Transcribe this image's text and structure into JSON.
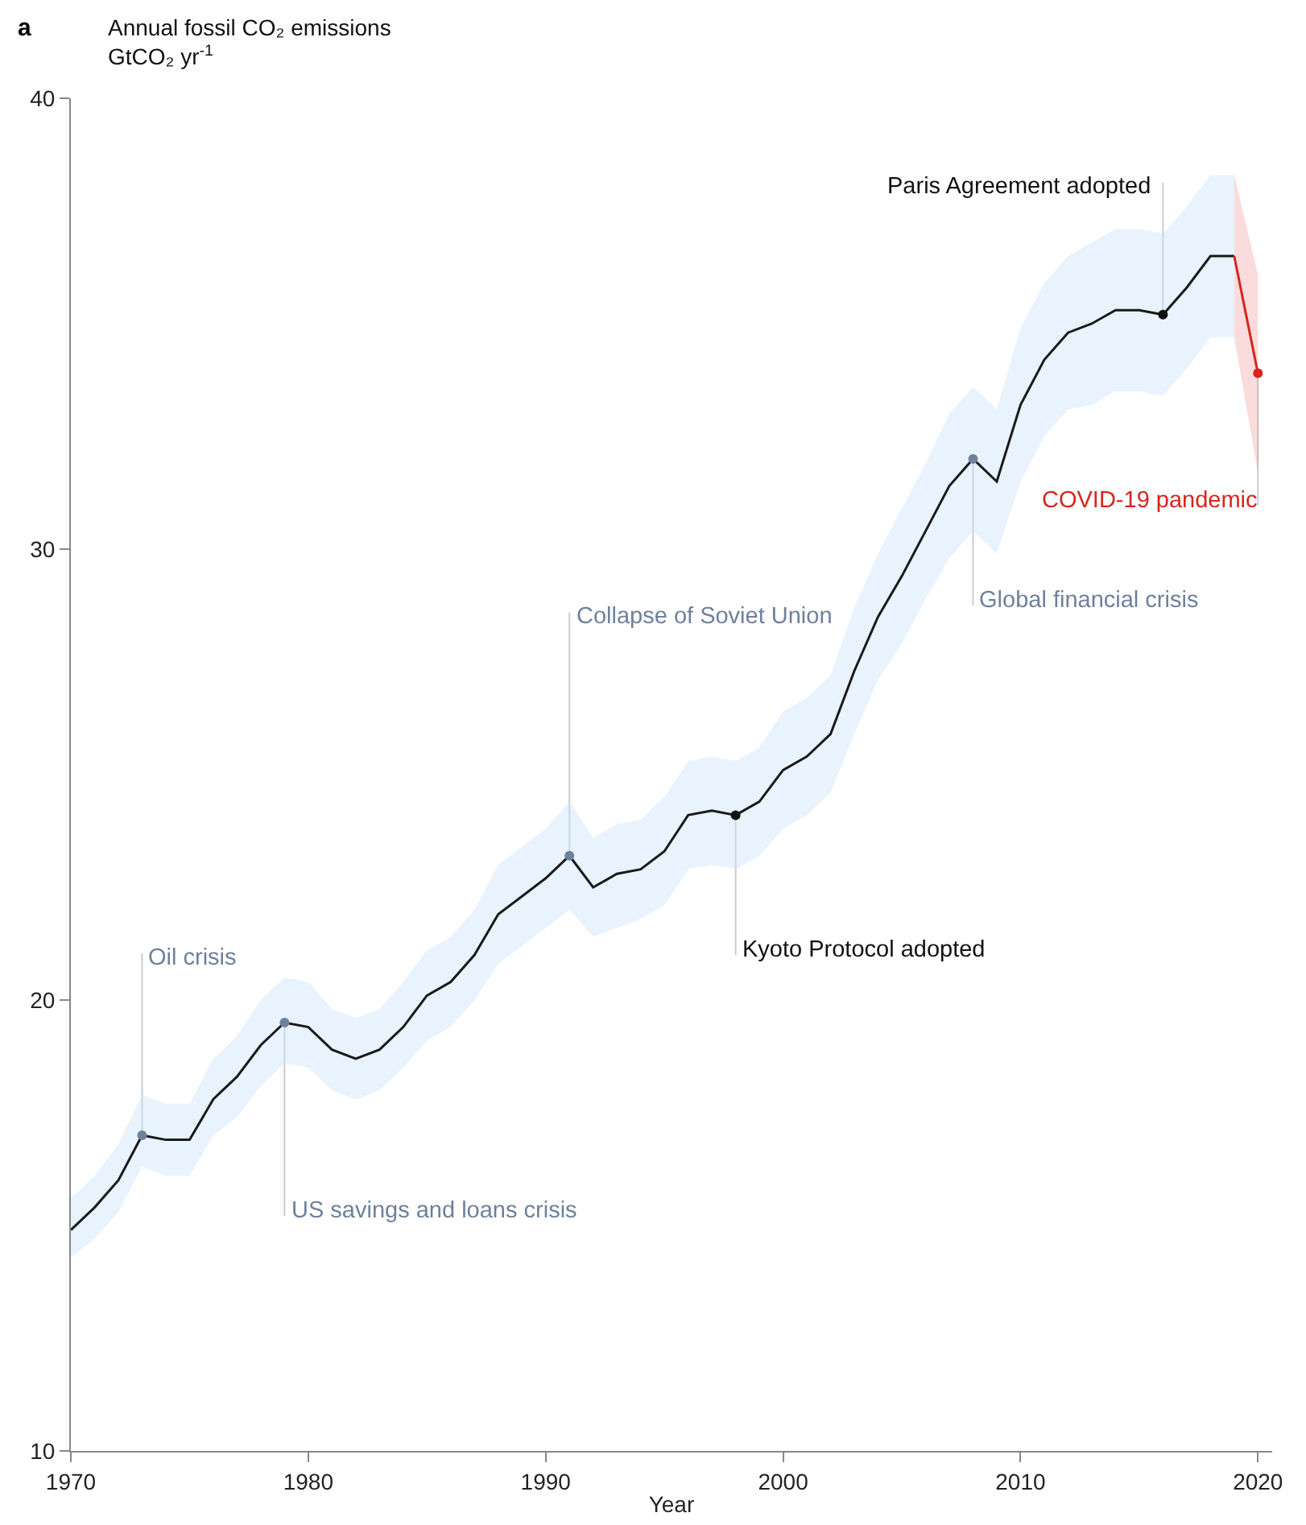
{
  "chart_data": {
    "type": "line",
    "title": "a",
    "ylabel": "Annual fossil CO₂ emissions\nGtCO₂ yr$^{-1}$",
    "xlabel": "Year",
    "xlim": [
      1970,
      2020.6
    ],
    "xticks": [
      1970,
      1980,
      1990,
      2000,
      2010,
      2020
    ],
    "ylim": [
      10,
      40
    ],
    "yticks": [
      10,
      20,
      30,
      40
    ],
    "grid": false,
    "marker": "none",
    "line_style": "solid",
    "series": [
      {
        "color": "#1a1a1a",
        "x": [
          1970,
          1971,
          1972,
          1973,
          1974,
          1975,
          1976,
          1977,
          1978,
          1979,
          1980,
          1981,
          1982,
          1983,
          1984,
          1985,
          1986,
          1987,
          1988,
          1989,
          1990,
          1991,
          1992,
          1993,
          1994,
          1995,
          1996,
          1997,
          1998,
          1999,
          2000,
          2001,
          2002,
          2003,
          2004,
          2005,
          2006,
          2007,
          2008,
          2009,
          2010,
          2011,
          2012,
          2013,
          2014,
          2015,
          2016,
          2017,
          2018,
          2019
        ],
        "values": [
          14.9,
          15.4,
          16.0,
          17.0,
          16.9,
          16.9,
          17.8,
          18.3,
          19.0,
          19.5,
          19.4,
          18.9,
          18.7,
          18.9,
          19.4,
          20.1,
          20.4,
          21.0,
          21.9,
          22.3,
          22.7,
          23.2,
          22.5,
          22.8,
          22.9,
          23.3,
          24.1,
          24.2,
          24.1,
          24.4,
          25.1,
          25.4,
          25.9,
          27.3,
          28.5,
          29.4,
          30.4,
          31.4,
          32.0,
          31.5,
          33.2,
          34.2,
          34.8,
          35.0,
          35.3,
          35.3,
          35.2,
          35.8,
          36.5,
          36.5
        ],
        "lower": [
          14.3,
          14.7,
          15.3,
          16.3,
          16.1,
          16.1,
          17.0,
          17.4,
          18.1,
          18.6,
          18.5,
          18.0,
          17.8,
          18.0,
          18.5,
          19.1,
          19.4,
          20.0,
          20.8,
          21.2,
          21.6,
          22.0,
          21.4,
          21.6,
          21.8,
          22.1,
          22.9,
          23.0,
          22.9,
          23.2,
          23.8,
          24.1,
          24.6,
          25.9,
          27.1,
          27.9,
          28.9,
          29.8,
          30.4,
          29.9,
          31.5,
          32.5,
          33.1,
          33.2,
          33.5,
          33.5,
          33.4,
          34.0,
          34.7,
          34.7
        ],
        "upper": [
          15.6,
          16.1,
          16.8,
          17.9,
          17.7,
          17.7,
          18.7,
          19.2,
          20.0,
          20.5,
          20.4,
          19.8,
          19.6,
          19.8,
          20.4,
          21.1,
          21.4,
          22.0,
          23.0,
          23.4,
          23.8,
          24.4,
          23.6,
          23.9,
          24.0,
          24.5,
          25.3,
          25.4,
          25.3,
          25.6,
          26.4,
          26.7,
          27.2,
          28.7,
          29.9,
          30.9,
          31.9,
          33.0,
          33.6,
          33.1,
          34.9,
          35.9,
          36.5,
          36.8,
          37.1,
          37.1,
          37.0,
          37.6,
          38.3,
          38.3
        ]
      },
      {
        "type": "line",
        "color": "#d7261e",
        "x": [
          2019,
          2020
        ],
        "values": [
          36.5,
          33.9
        ],
        "lower": [
          34.7,
          31.7
        ],
        "upper": [
          38.3,
          36.1
        ]
      },
      {
        "type": "scatter",
        "marker": "circle",
        "x": [
          1973,
          1979,
          1991,
          1998,
          2008,
          2016,
          2020
        ],
        "values": [
          17.0,
          19.5,
          23.2,
          24.1,
          32.0,
          35.2,
          33.9
        ],
        "colors": [
          "#6e819c",
          "#6e819c",
          "#6e819c",
          "#111111",
          "#6e819c",
          "#111111",
          "#d7261e"
        ]
      }
    ],
    "annotations": [
      {
        "text": "Oil crisis",
        "x": 1973,
        "y": 17.0
      },
      {
        "text": "US savings and loans crisis",
        "x": 1979,
        "y": 19.5
      },
      {
        "text": "Collapse of Soviet Union",
        "x": 1991,
        "y": 23.2
      },
      {
        "text": "Kyoto Protocol adopted",
        "x": 1998,
        "y": 24.1
      },
      {
        "text": "Global financial crisis",
        "x": 2008,
        "y": 32.0
      },
      {
        "text": "Paris Agreement adopted",
        "x": 2016,
        "y": 35.2
      },
      {
        "text": "COVID-19 pandemic",
        "x": 2020,
        "y": 33.9
      }
    ]
  }
}
